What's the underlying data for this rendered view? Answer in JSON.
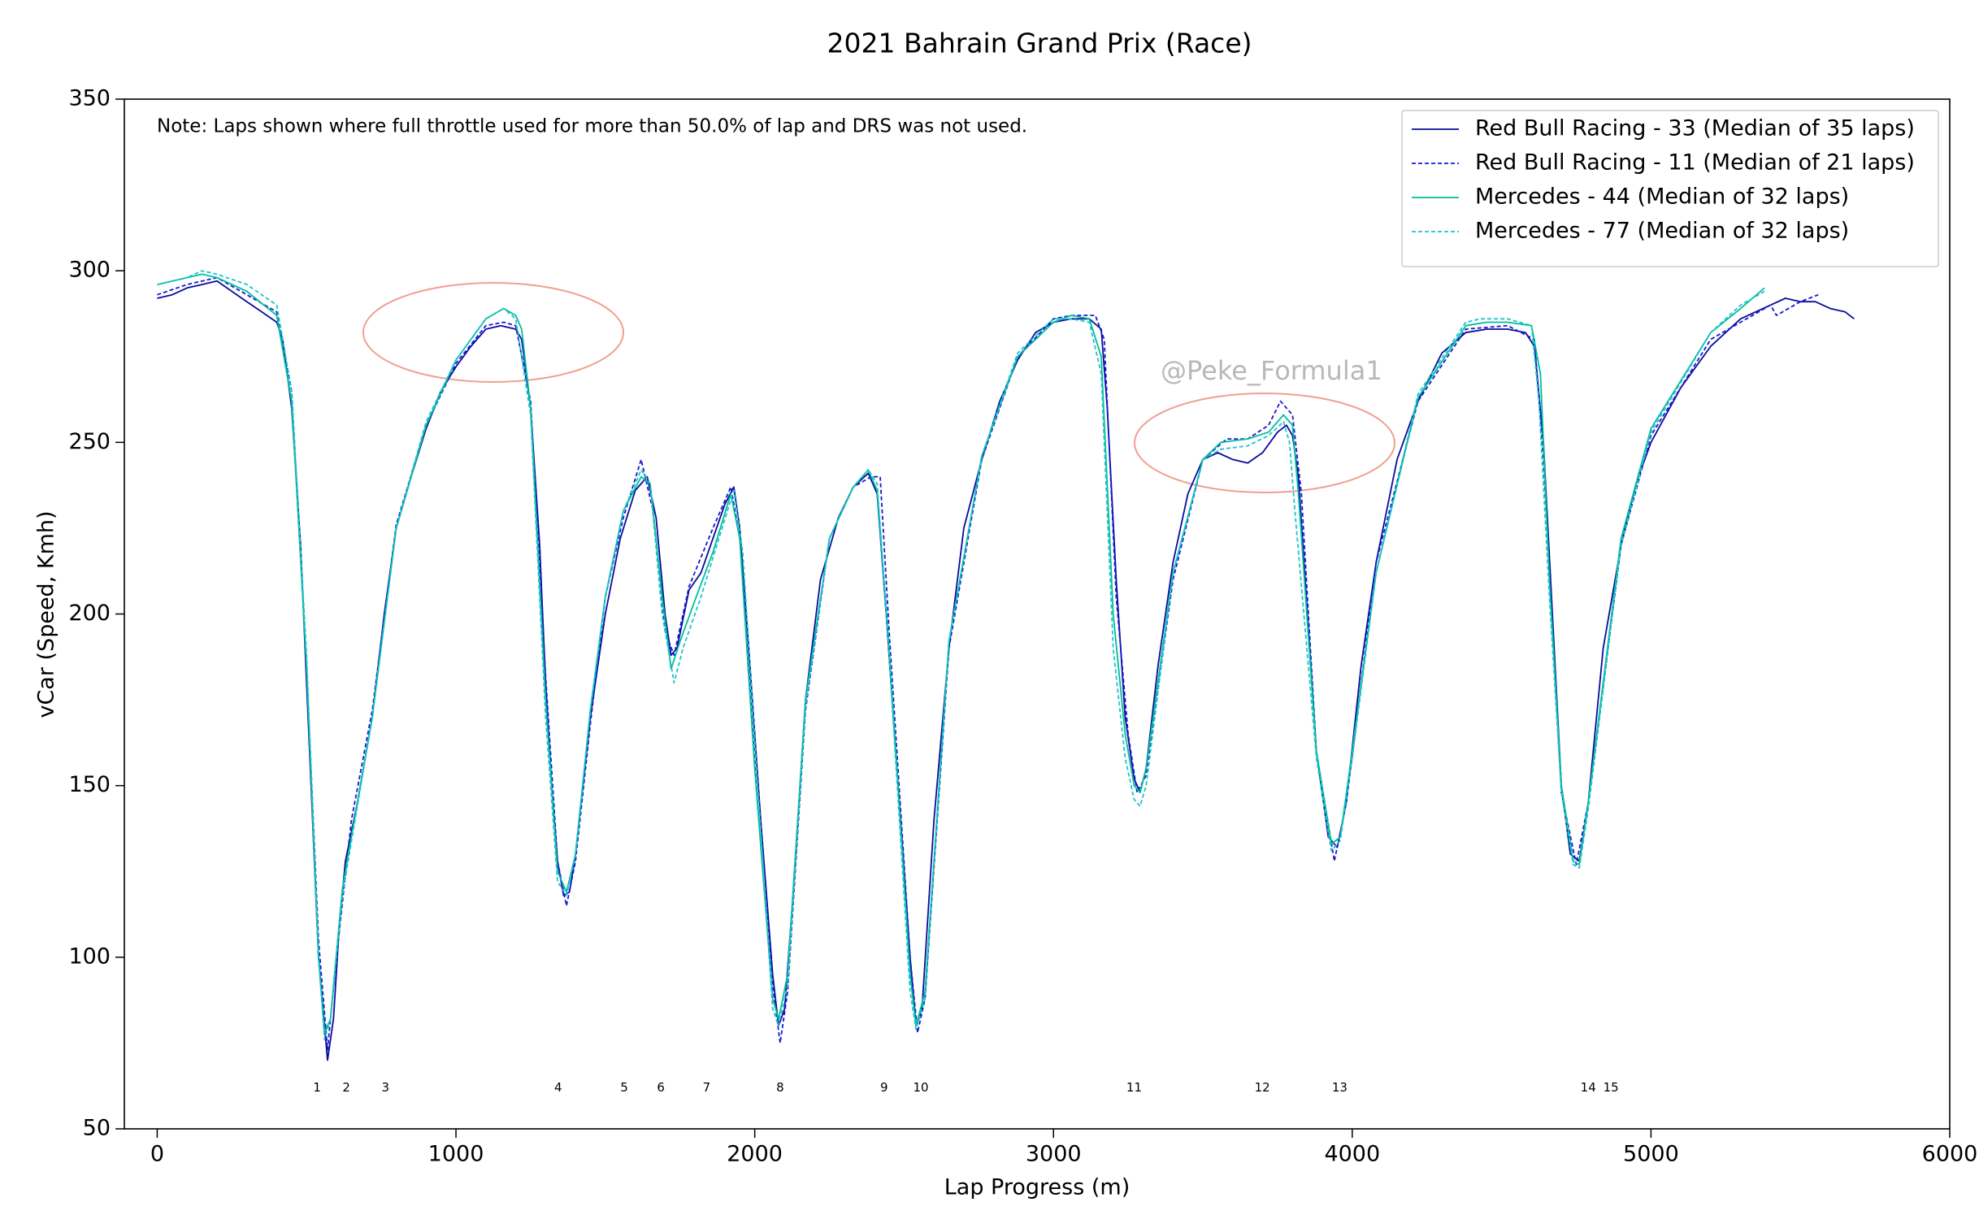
{
  "chart_data": {
    "type": "line",
    "title": "2021 Bahrain Grand Prix (Race)",
    "xlabel": "Lap Progress (m)",
    "ylabel": "vCar (Speed, Kmh)",
    "note": "Note: Laps shown where full throttle used for more than 50.0% of lap and DRS was not used.",
    "watermark": "@Peke_Formula1",
    "xlim": [
      -110,
      6000
    ],
    "ylim": [
      50,
      350
    ],
    "xticks": [
      0,
      1000,
      2000,
      3000,
      4000,
      5000,
      6000
    ],
    "yticks": [
      50,
      100,
      150,
      200,
      250,
      300,
      350
    ],
    "grid": false,
    "legend": "upper right",
    "corners": {
      "labels": [
        "1",
        "2",
        "3",
        "4",
        "5",
        "6",
        "7",
        "8",
        "9",
        "10",
        "11",
        "12",
        "13",
        "14",
        "15"
      ],
      "x": [
        535,
        633,
        764,
        1342,
        1563,
        1686,
        1839,
        2085,
        2433,
        2556,
        3270,
        3699,
        3958,
        4790,
        4866
      ],
      "y": 62
    },
    "series": [
      {
        "name": "Red Bull Racing - 33 (Median of 35 laps)",
        "color": "#0a0a9e",
        "dash": false,
        "x": [
          0,
          50,
          100,
          150,
          200,
          250,
          300,
          350,
          400,
          420,
          450,
          480,
          500,
          520,
          540,
          560,
          570,
          590,
          610,
          630,
          670,
          720,
          760,
          800,
          850,
          900,
          950,
          1000,
          1050,
          1100,
          1150,
          1200,
          1220,
          1250,
          1280,
          1300,
          1320,
          1340,
          1360,
          1380,
          1400,
          1450,
          1500,
          1550,
          1600,
          1640,
          1670,
          1700,
          1720,
          1740,
          1780,
          1820,
          1860,
          1900,
          1930,
          1950,
          1980,
          2020,
          2060,
          2080,
          2100,
          2130,
          2170,
          2220,
          2280,
          2330,
          2380,
          2410,
          2440,
          2480,
          2520,
          2540,
          2560,
          2600,
          2650,
          2700,
          2760,
          2820,
          2880,
          2940,
          3000,
          3060,
          3120,
          3160,
          3180,
          3210,
          3240,
          3270,
          3290,
          3310,
          3350,
          3400,
          3450,
          3500,
          3550,
          3600,
          3650,
          3700,
          3750,
          3780,
          3800,
          3820,
          3850,
          3880,
          3920,
          3950,
          3980,
          4030,
          4080,
          4150,
          4220,
          4300,
          4380,
          4450,
          4520,
          4580,
          4610,
          4640,
          4670,
          4700,
          4730,
          4760,
          4790,
          4840,
          4900,
          4950,
          5000,
          5100,
          5200,
          5300,
          5400,
          5450,
          5500,
          5550,
          5600,
          5650,
          5680
        ],
        "values": [
          292,
          293,
          295,
          296,
          297,
          294,
          291,
          288,
          285,
          280,
          260,
          220,
          180,
          140,
          100,
          80,
          70,
          82,
          110,
          128,
          145,
          170,
          200,
          225,
          240,
          254,
          265,
          272,
          278,
          283,
          284,
          283,
          280,
          260,
          220,
          180,
          150,
          128,
          118,
          119,
          130,
          170,
          200,
          222,
          236,
          240,
          228,
          200,
          188,
          190,
          207,
          212,
          222,
          232,
          237,
          225,
          190,
          140,
          95,
          80,
          85,
          120,
          175,
          210,
          228,
          237,
          241,
          235,
          200,
          150,
          100,
          80,
          85,
          140,
          190,
          225,
          245,
          262,
          274,
          282,
          285,
          286,
          286,
          283,
          260,
          210,
          170,
          152,
          148,
          155,
          185,
          215,
          235,
          245,
          247,
          245,
          244,
          247,
          253,
          255,
          252,
          240,
          200,
          160,
          135,
          132,
          145,
          185,
          215,
          245,
          262,
          276,
          282,
          283,
          283,
          282,
          278,
          250,
          200,
          150,
          130,
          128,
          145,
          190,
          220,
          238,
          250,
          266,
          278,
          286,
          290,
          292,
          291,
          291,
          289,
          288,
          286
        ]
      },
      {
        "name": "Red Bull Racing - 11 (Median of 21 laps)",
        "color": "#1818d0",
        "dash": true,
        "x": [
          0,
          100,
          200,
          300,
          400,
          450,
          500,
          540,
          570,
          600,
          650,
          720,
          800,
          900,
          1000,
          1100,
          1160,
          1200,
          1250,
          1300,
          1340,
          1370,
          1400,
          1450,
          1500,
          1560,
          1620,
          1660,
          1700,
          1730,
          1780,
          1860,
          1920,
          1950,
          2000,
          2060,
          2085,
          2110,
          2170,
          2250,
          2330,
          2390,
          2420,
          2450,
          2520,
          2545,
          2570,
          2650,
          2760,
          2880,
          3000,
          3060,
          3140,
          3170,
          3210,
          3250,
          3280,
          3310,
          3400,
          3500,
          3580,
          3650,
          3720,
          3760,
          3800,
          3830,
          3880,
          3940,
          3980,
          4080,
          4220,
          4380,
          4520,
          4610,
          4640,
          4700,
          4750,
          4790,
          4900,
          5000,
          5200,
          5400,
          5420,
          5500,
          5560
        ],
        "values": [
          293,
          296,
          298,
          293,
          288,
          265,
          185,
          105,
          73,
          100,
          140,
          172,
          226,
          255,
          273,
          284,
          285,
          284,
          262,
          182,
          128,
          115,
          128,
          168,
          205,
          228,
          245,
          230,
          195,
          188,
          208,
          225,
          237,
          222,
          160,
          92,
          75,
          90,
          172,
          222,
          237,
          240,
          240,
          195,
          100,
          78,
          88,
          190,
          245,
          275,
          286,
          287,
          287,
          280,
          205,
          165,
          148,
          153,
          210,
          245,
          251,
          251,
          255,
          262,
          258,
          235,
          160,
          128,
          145,
          215,
          262,
          283,
          284,
          280,
          245,
          148,
          127,
          145,
          220,
          252,
          280,
          290,
          287,
          291,
          293
        ]
      },
      {
        "name": "Mercedes - 44 (Median of 32 laps)",
        "color": "#00bf9a",
        "dash": false,
        "x": [
          0,
          100,
          150,
          200,
          300,
          400,
          450,
          500,
          540,
          560,
          580,
          620,
          720,
          800,
          900,
          1000,
          1100,
          1160,
          1200,
          1220,
          1250,
          1300,
          1340,
          1370,
          1400,
          1450,
          1500,
          1560,
          1620,
          1650,
          1690,
          1720,
          1750,
          1800,
          1860,
          1920,
          1950,
          2000,
          2060,
          2080,
          2110,
          2170,
          2250,
          2330,
          2380,
          2410,
          2450,
          2520,
          2540,
          2570,
          2650,
          2760,
          2880,
          3000,
          3060,
          3120,
          3160,
          3200,
          3240,
          3270,
          3290,
          3310,
          3400,
          3500,
          3560,
          3650,
          3720,
          3770,
          3800,
          3820,
          3880,
          3930,
          3960,
          4000,
          4080,
          4220,
          4380,
          4450,
          4520,
          4600,
          4630,
          4660,
          4700,
          4740,
          4760,
          4790,
          4900,
          5000,
          5200,
          5300,
          5380
        ],
        "values": [
          296,
          298,
          299,
          298,
          294,
          287,
          262,
          185,
          100,
          78,
          82,
          120,
          170,
          225,
          255,
          274,
          286,
          289,
          287,
          283,
          260,
          175,
          125,
          119,
          130,
          172,
          205,
          230,
          240,
          238,
          205,
          184,
          192,
          204,
          218,
          235,
          222,
          155,
          88,
          82,
          95,
          175,
          222,
          237,
          242,
          236,
          190,
          95,
          80,
          90,
          192,
          246,
          275,
          285,
          287,
          286,
          275,
          200,
          165,
          150,
          148,
          155,
          212,
          245,
          250,
          251,
          253,
          258,
          255,
          235,
          160,
          133,
          135,
          160,
          212,
          263,
          284,
          285,
          285,
          284,
          270,
          210,
          150,
          128,
          127,
          145,
          222,
          254,
          282,
          289,
          295
        ]
      },
      {
        "name": "Mercedes - 77 (Median of 32 laps)",
        "color": "#1cc4cc",
        "dash": true,
        "x": [
          0,
          100,
          150,
          200,
          300,
          400,
          450,
          500,
          540,
          560,
          580,
          620,
          720,
          800,
          900,
          1000,
          1100,
          1160,
          1200,
          1250,
          1300,
          1340,
          1370,
          1400,
          1450,
          1500,
          1560,
          1620,
          1650,
          1690,
          1730,
          1760,
          1820,
          1880,
          1930,
          1960,
          2010,
          2060,
          2080,
          2110,
          2170,
          2250,
          2330,
          2380,
          2410,
          2450,
          2520,
          2540,
          2570,
          2650,
          2760,
          2880,
          3000,
          3060,
          3120,
          3160,
          3200,
          3240,
          3270,
          3290,
          3310,
          3400,
          3500,
          3560,
          3650,
          3720,
          3770,
          3790,
          3810,
          3880,
          3930,
          3960,
          4000,
          4080,
          4220,
          4380,
          4430,
          4520,
          4600,
          4625,
          4660,
          4700,
          4740,
          4760,
          4790,
          4900,
          5000,
          5200,
          5300,
          5380
        ],
        "values": [
          296,
          298,
          300,
          299,
          296,
          290,
          265,
          188,
          100,
          76,
          82,
          118,
          170,
          225,
          256,
          274,
          286,
          289,
          286,
          258,
          170,
          122,
          118,
          130,
          172,
          205,
          230,
          242,
          238,
          200,
          180,
          190,
          205,
          222,
          236,
          218,
          150,
          85,
          80,
          92,
          173,
          222,
          237,
          242,
          238,
          188,
          90,
          79,
          88,
          192,
          246,
          276,
          286,
          286,
          285,
          270,
          190,
          158,
          146,
          144,
          150,
          212,
          245,
          248,
          249,
          252,
          256,
          250,
          228,
          158,
          131,
          134,
          158,
          212,
          264,
          285,
          286,
          286,
          284,
          262,
          205,
          148,
          127,
          126,
          143,
          220,
          253,
          282,
          290,
          294
        ]
      }
    ]
  }
}
